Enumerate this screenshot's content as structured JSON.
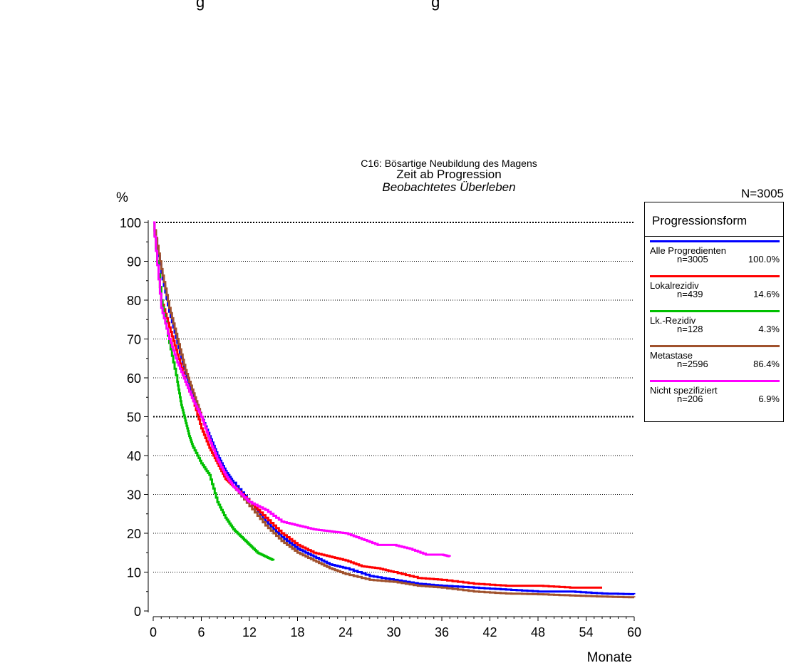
{
  "page": {
    "header_fragment": "g                                                    g",
    "y_unit": "%",
    "total": "N=3005"
  },
  "chart_data": {
    "type": "line",
    "title": "C16: Bösartige Neubildung des Magens",
    "subtitle": "Zeit ab Progression",
    "subtitle2": "Beobachtetes Überleben",
    "xlabel": "Monate",
    "ylabel": "%",
    "xlim": [
      0,
      60
    ],
    "ylim": [
      0,
      100
    ],
    "xticks": [
      0,
      6,
      12,
      18,
      24,
      30,
      36,
      42,
      48,
      54,
      60
    ],
    "yticks": [
      0,
      10,
      20,
      30,
      40,
      50,
      60,
      70,
      80,
      90,
      100
    ],
    "grid": "dotted horizontal",
    "legend_placement": "right",
    "legend": {
      "title": "Progressionsform",
      "entries": [
        {
          "name": "Alle Progredienten",
          "n": "n=3005",
          "pct": "100.0%",
          "color": "#0000ff"
        },
        {
          "name": "Lokalrezidiv",
          "n": "n=439",
          "pct": "14.6%",
          "color": "#ff0000"
        },
        {
          "name": "Lk.-Rezidiv",
          "n": "n=128",
          "pct": "4.3%",
          "color": "#00c000"
        },
        {
          "name": "Metastase",
          "n": "n=2596",
          "pct": "86.4%",
          "color": "#a0522d"
        },
        {
          "name": "Nicht spezifiziert",
          "n": "n=206",
          "pct": "6.9%",
          "color": "#ff00ff"
        }
      ]
    },
    "series": [
      {
        "name": "Alle Progredienten",
        "color": "#0000ff",
        "x": [
          0,
          1,
          2,
          3,
          4,
          5,
          6,
          7,
          8,
          9,
          10,
          12,
          14,
          16,
          18,
          20,
          22,
          24,
          27,
          30,
          33,
          36,
          40,
          44,
          48,
          52,
          56,
          60
        ],
        "y": [
          100,
          87,
          77,
          69,
          61,
          55,
          50,
          45,
          40,
          36,
          33,
          28,
          23,
          19,
          16,
          14,
          12,
          11,
          9,
          8,
          7,
          6.5,
          6,
          5.5,
          5,
          5,
          4.5,
          4.3
        ]
      },
      {
        "name": "Lokalrezidiv",
        "color": "#ff0000",
        "x": [
          0,
          1,
          2,
          3,
          4,
          5,
          6,
          7,
          8,
          9,
          10,
          12,
          14,
          16,
          18,
          20,
          22,
          24,
          26,
          28,
          30,
          33,
          36,
          40,
          44,
          48,
          52,
          56
        ],
        "y": [
          100,
          80,
          73,
          66,
          59,
          54,
          47,
          42,
          38,
          34,
          32,
          28,
          24,
          20,
          17,
          15,
          14,
          13,
          11.5,
          11,
          10,
          8.5,
          8,
          7,
          6.5,
          6.5,
          6,
          6
        ]
      },
      {
        "name": "Lk.-Rezidiv",
        "color": "#00c000",
        "x": [
          0,
          1,
          2,
          3,
          3.5,
          4,
          4.5,
          5,
          6,
          7,
          8,
          9,
          10,
          11,
          12,
          13,
          14,
          15
        ],
        "y": [
          100,
          80,
          69,
          59,
          53,
          49,
          45,
          42,
          38,
          35,
          28,
          24,
          21,
          19,
          17,
          15,
          14,
          13
        ]
      },
      {
        "name": "Metastase",
        "color": "#a0522d",
        "x": [
          0,
          1,
          2,
          3,
          4,
          5,
          6,
          7,
          8,
          9,
          10,
          12,
          14,
          16,
          18,
          20,
          22,
          24,
          27,
          30,
          33,
          36,
          40,
          44,
          48,
          52,
          56,
          60
        ],
        "y": [
          100,
          88,
          78,
          70,
          62,
          56,
          50,
          44,
          39,
          35,
          32,
          27,
          22,
          18,
          15,
          13,
          11,
          9.5,
          8,
          7.5,
          6.5,
          6,
          5,
          4.5,
          4.3,
          4,
          3.7,
          3.5
        ]
      },
      {
        "name": "Nicht spezifiziert",
        "color": "#ff00ff",
        "x": [
          0,
          1,
          2,
          3,
          4,
          5,
          6,
          7,
          8,
          9,
          10,
          11,
          12,
          14,
          16,
          18,
          20,
          22,
          24,
          26,
          28,
          30,
          32,
          34,
          36,
          37
        ],
        "y": [
          100,
          78,
          70,
          64,
          59,
          54,
          50,
          44,
          39,
          35,
          32,
          30,
          28,
          26,
          23,
          22,
          21,
          20.5,
          20,
          18.5,
          17,
          17,
          16,
          14.5,
          14.5,
          14
        ]
      }
    ]
  }
}
